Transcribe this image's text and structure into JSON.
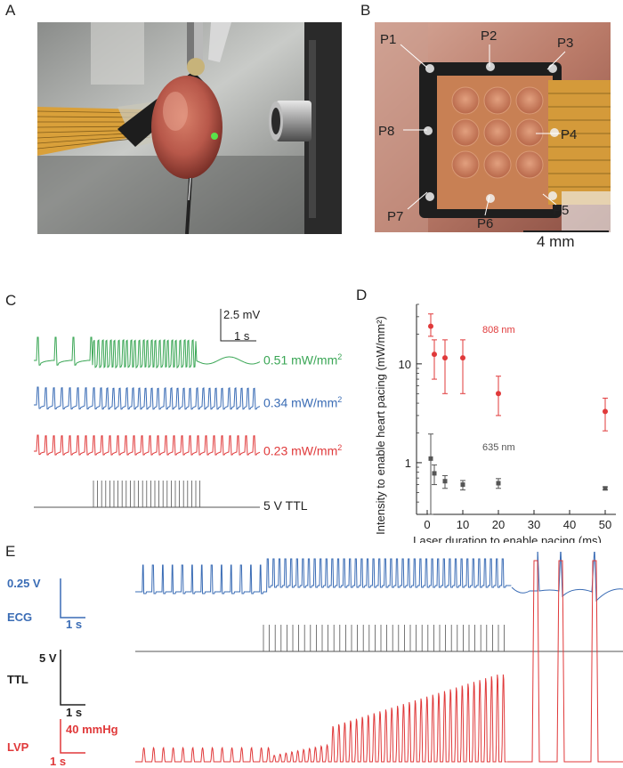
{
  "panels": {
    "A": "A",
    "B": "B",
    "C": "C",
    "D": "D",
    "E": "E"
  },
  "panel_b": {
    "pad_labels": [
      "P1",
      "P2",
      "P3",
      "P4",
      "P5",
      "P6",
      "P7",
      "P8"
    ],
    "scale_bar": "4 mm"
  },
  "panel_c": {
    "scale_v": "2.5 mV",
    "scale_t": "1 s",
    "traces": [
      {
        "label": "0.51 mW/mm",
        "sup": "2",
        "color": "#3aa655"
      },
      {
        "label": "0.34 mW/mm",
        "sup": "2",
        "color": "#3a6cb5"
      },
      {
        "label": "0.23 mW/mm",
        "sup": "2",
        "color": "#e0393a"
      }
    ],
    "ttl_label": "5 V TTL"
  },
  "chart_data": {
    "type": "scatter",
    "ylabel": "Intensity to enable heart pacing (mW/mm²)",
    "xlabel": "Laser duration to enable pacing (ms)",
    "y_scale": "log",
    "ylim": [
      0.3,
      40
    ],
    "xlim": [
      -3,
      53
    ],
    "x_ticks": [
      0,
      10,
      20,
      30,
      40,
      50
    ],
    "y_ticks": [
      1,
      10
    ],
    "y_tick_labels": [
      "1",
      "10"
    ],
    "series": [
      {
        "name": "808 nm",
        "color": "#e0393a",
        "x": [
          1,
          2,
          5,
          10,
          20,
          50
        ],
        "y": [
          24,
          12.5,
          11.5,
          11.5,
          5,
          3.3
        ],
        "err_low": [
          19,
          7,
          5,
          5,
          3,
          2.1
        ],
        "err_high": [
          32,
          17.5,
          17.5,
          17.5,
          7.5,
          4.5
        ]
      },
      {
        "name": "635 nm",
        "color": "#555555",
        "x": [
          1,
          2,
          5,
          10,
          20,
          50
        ],
        "y": [
          1.1,
          0.78,
          0.65,
          0.6,
          0.62,
          0.55
        ],
        "err_low": [
          0.3,
          0.6,
          0.55,
          0.53,
          0.55,
          0.53
        ],
        "err_high": [
          1.95,
          0.95,
          0.74,
          0.66,
          0.69,
          0.57
        ]
      }
    ]
  },
  "panel_e": {
    "ecg": {
      "name": "ECG",
      "scale_v": "0.25 V",
      "scale_t": "1 s",
      "color": "#3a6cb5"
    },
    "ttl": {
      "name": "TTL",
      "scale_v": "5 V",
      "scale_t": "1 s",
      "color": "#222222"
    },
    "lvp": {
      "name": "LVP",
      "scale_v": "40 mmHg",
      "scale_t": "1 s",
      "color": "#e0393a"
    }
  }
}
